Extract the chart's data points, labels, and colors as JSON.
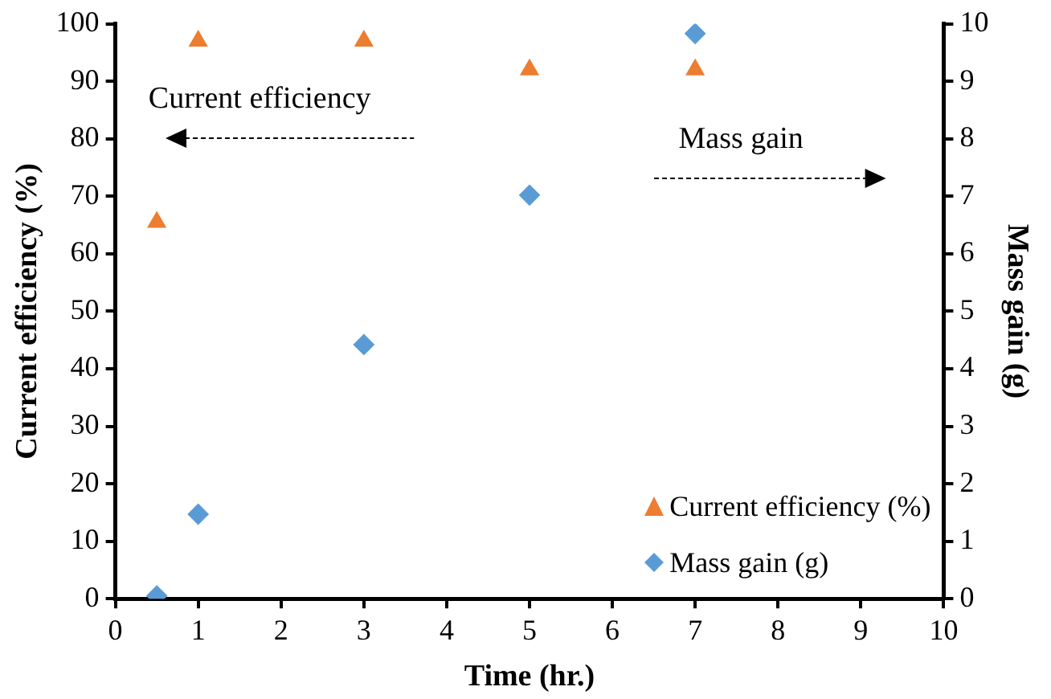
{
  "chart_data": {
    "type": "scatter",
    "xlabel": "Time (hr.)",
    "ylabel": "Current efficiency (%)",
    "y2label": "Mass gain (g)",
    "annotations": [
      "Current efficiency",
      "Mass gain"
    ],
    "series": [
      {
        "name": "Current efficiency (%)",
        "color": "#ed7d31",
        "marker": "triangle",
        "x": [
          0.5,
          1,
          3,
          5,
          7
        ],
        "values": [
          65.5,
          97,
          97,
          92,
          92
        ]
      },
      {
        "name": "Mass gain (g)",
        "color": "#5b9bd5",
        "marker": "diamond",
        "axis": "y2",
        "x": [
          0.5,
          1,
          3,
          5,
          7
        ],
        "values": [
          0.05,
          1.47,
          4.42,
          7.02,
          9.83
        ]
      }
    ],
    "xlim": [
      0,
      10
    ],
    "xticks": [
      0,
      1,
      2,
      3,
      4,
      5,
      6,
      7,
      8,
      9,
      10
    ],
    "ylim": [
      0,
      100
    ],
    "yticks": [
      0,
      10,
      20,
      30,
      40,
      50,
      60,
      70,
      80,
      90,
      100
    ],
    "y2lim": [
      0,
      10
    ],
    "y2ticks": [
      0,
      1,
      2,
      3,
      4,
      5,
      6,
      7,
      8,
      9,
      10
    ],
    "grid": false,
    "legend": "bottom right"
  }
}
